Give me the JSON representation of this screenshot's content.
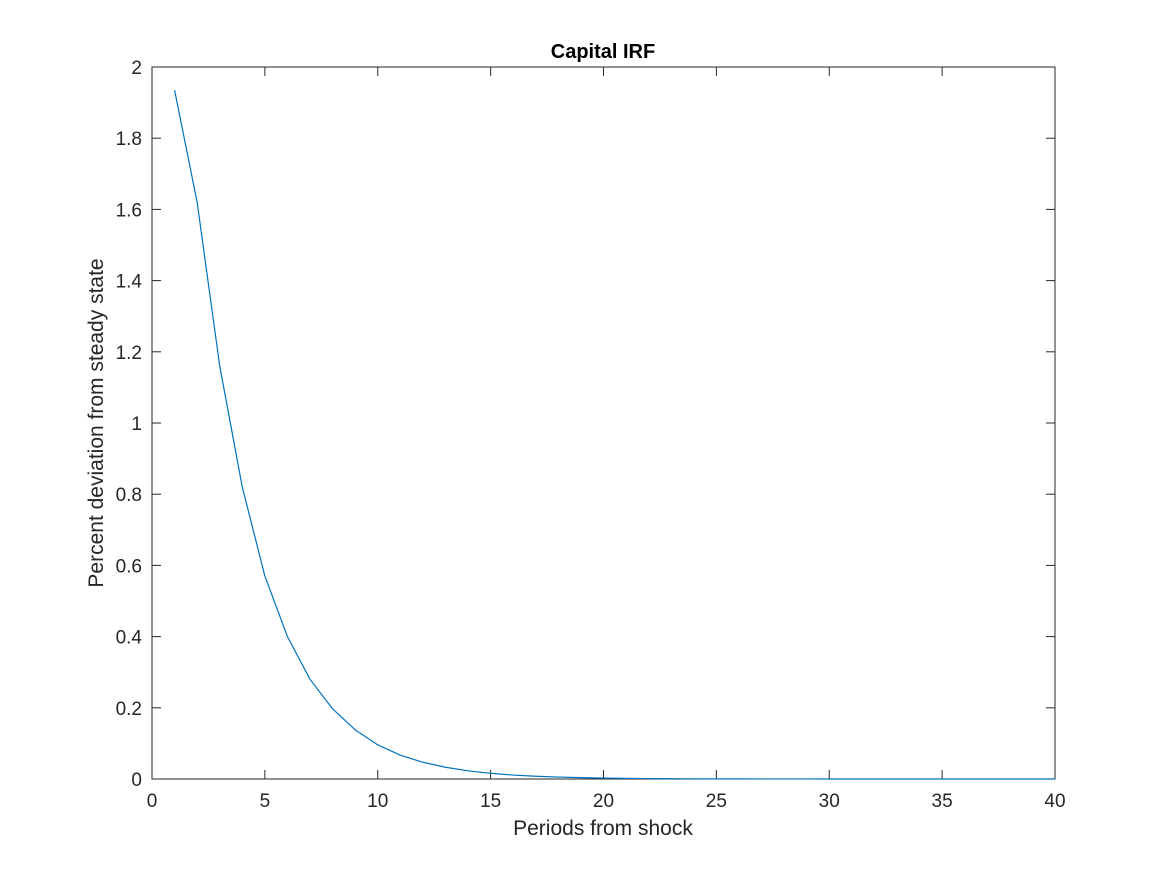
{
  "colors": {
    "series": "#0072BD",
    "axes": "#262626",
    "background": "#ffffff"
  },
  "chart_data": {
    "type": "line",
    "title": "Capital IRF",
    "xlabel": "Periods from shock",
    "ylabel": "Percent deviation from steady state",
    "xlim": [
      0,
      40
    ],
    "ylim": [
      0,
      2
    ],
    "grid": false,
    "box": true,
    "xticks": [
      0,
      5,
      10,
      15,
      20,
      25,
      30,
      35,
      40
    ],
    "xtick_labels": [
      "0",
      "5",
      "10",
      "15",
      "20",
      "25",
      "30",
      "35",
      "40"
    ],
    "yticks": [
      0,
      0.2,
      0.4,
      0.6,
      0.8,
      1,
      1.2,
      1.4,
      1.6,
      1.8,
      2
    ],
    "ytick_labels": [
      "0",
      "0.2",
      "0.4",
      "0.6",
      "0.8",
      "1",
      "1.2",
      "1.4",
      "1.6",
      "1.8",
      "2"
    ],
    "series": [
      {
        "x": [
          1,
          2,
          3,
          4,
          5,
          6,
          7,
          8,
          9,
          10,
          11,
          12,
          13,
          14,
          15,
          16,
          17,
          18,
          19,
          20,
          21,
          22,
          23,
          24,
          25,
          26,
          27,
          28,
          29,
          30,
          31,
          32,
          33,
          34,
          35,
          36,
          37,
          38,
          39,
          40
        ],
        "values": [
          1.935,
          1.62,
          1.16,
          0.82,
          0.57,
          0.4,
          0.28,
          0.197,
          0.138,
          0.096,
          0.067,
          0.047,
          0.033,
          0.023,
          0.016,
          0.011,
          0.0077,
          0.0054,
          0.0038,
          0.0026,
          0.0018,
          0.0013,
          0.0009,
          0.0006,
          0.0004,
          0.0003,
          0.0002,
          0.00015,
          0.0001,
          7e-05,
          5e-05,
          4e-05,
          3e-05,
          2e-05,
          1e-05,
          1e-05,
          1e-05,
          0,
          0,
          0
        ]
      }
    ]
  }
}
